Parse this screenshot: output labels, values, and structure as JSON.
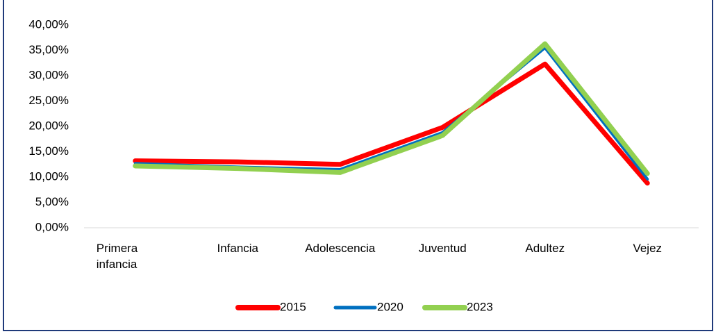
{
  "chart_data": {
    "type": "line",
    "categories": [
      "Primera infancia",
      "Infancia",
      "Adolescencia",
      "Juventud",
      "Adultez",
      "Vejez"
    ],
    "series": [
      {
        "name": "2015",
        "color": "#ff0000",
        "values": [
          13.2,
          13.0,
          12.5,
          19.8,
          32.3,
          8.8
        ]
      },
      {
        "name": "2020",
        "color": "#0070c0",
        "values": [
          12.7,
          12.0,
          11.5,
          18.8,
          35.5,
          9.6
        ]
      },
      {
        "name": "2023",
        "color": "#92d050",
        "values": [
          12.2,
          11.7,
          10.9,
          18.2,
          36.3,
          10.7
        ]
      }
    ],
    "ylim": [
      0,
      40
    ],
    "yticks": [
      {
        "value": 0,
        "label": "0,00%"
      },
      {
        "value": 5,
        "label": "5,00%"
      },
      {
        "value": 10,
        "label": "10,00%"
      },
      {
        "value": 15,
        "label": "15,00%"
      },
      {
        "value": 20,
        "label": "20,00%"
      },
      {
        "value": 25,
        "label": "25,00%"
      },
      {
        "value": 30,
        "label": "30,00%"
      },
      {
        "value": 35,
        "label": "35,00%"
      },
      {
        "value": 40,
        "label": "40,00%"
      }
    ],
    "grid": false,
    "legend": "bottom"
  }
}
